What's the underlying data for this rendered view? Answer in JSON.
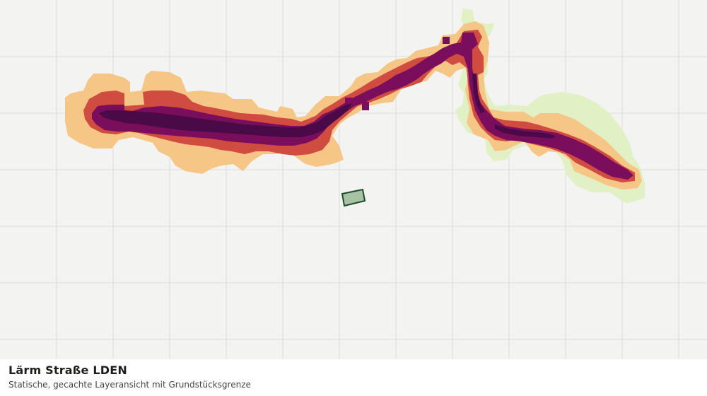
{
  "map": {
    "title": "Lärm Straße LDEN",
    "subtitle": "Statische, gecachte Layeransicht mit Grundstücksgrenze",
    "layer": "noise-road-lden",
    "colors": {
      "background": "#f3f4f2",
      "grid": "#dcdedb",
      "band_lightest": "#e2f0c6",
      "band_light": "#f5c686",
      "band_mid": "#d04b40",
      "band_high": "#7a0e5c",
      "band_highest": "#4a0a48",
      "parcel_fill": "#a8c2a6",
      "parcel_stroke": "#1f4d2c"
    }
  }
}
